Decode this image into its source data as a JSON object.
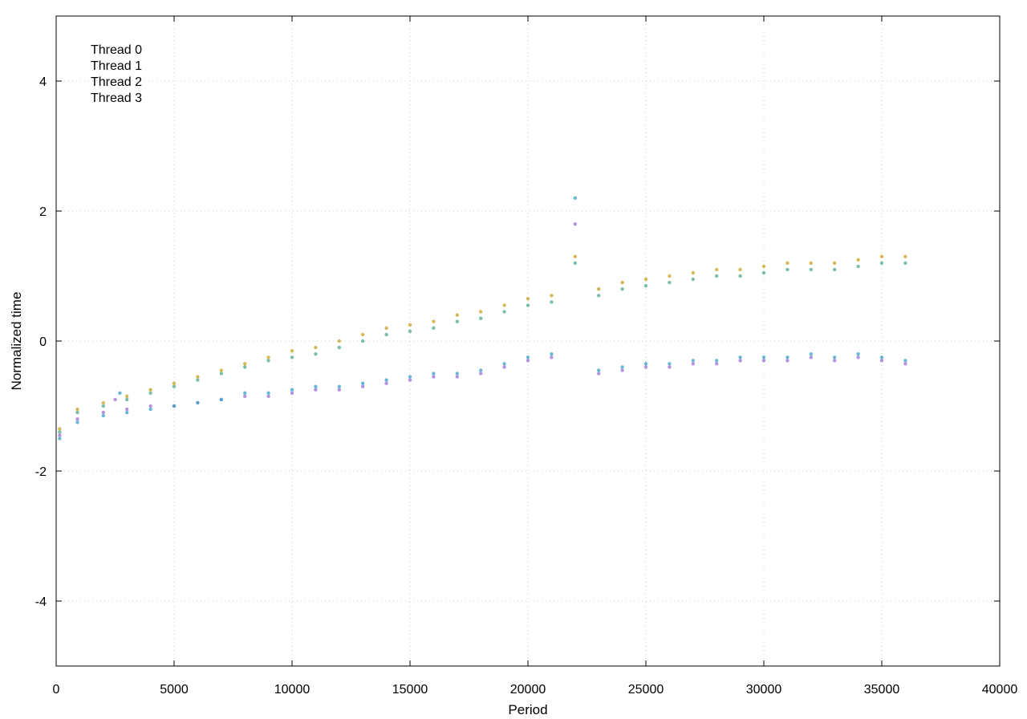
{
  "chart_data": {
    "type": "scatter",
    "xlabel": "Period",
    "ylabel": "Normalized time",
    "xlim": [
      0,
      40000
    ],
    "ylim": [
      -5,
      5
    ],
    "xticks": [
      0,
      5000,
      10000,
      15000,
      20000,
      25000,
      30000,
      35000,
      40000
    ],
    "yticks": [
      -4,
      -2,
      0,
      2,
      4
    ],
    "grid": true,
    "legend_position": "top-left",
    "series": [
      {
        "name": "Thread 0",
        "color": "#9b6fd6",
        "points": [
          [
            150,
            -1.45
          ],
          [
            900,
            -1.2
          ],
          [
            2000,
            -1.1
          ],
          [
            2500,
            -0.9
          ],
          [
            3000,
            -1.05
          ],
          [
            4000,
            -1.0
          ],
          [
            5000,
            -1.0
          ],
          [
            6000,
            -0.95
          ],
          [
            7000,
            -0.9
          ],
          [
            8000,
            -0.85
          ],
          [
            9000,
            -0.85
          ],
          [
            10000,
            -0.8
          ],
          [
            11000,
            -0.75
          ],
          [
            12000,
            -0.75
          ],
          [
            13000,
            -0.7
          ],
          [
            14000,
            -0.65
          ],
          [
            15000,
            -0.6
          ],
          [
            16000,
            -0.55
          ],
          [
            17000,
            -0.55
          ],
          [
            18000,
            -0.5
          ],
          [
            19000,
            -0.4
          ],
          [
            20000,
            -0.3
          ],
          [
            21000,
            -0.25
          ],
          [
            22000,
            1.8
          ],
          [
            23000,
            -0.5
          ],
          [
            24000,
            -0.45
          ],
          [
            25000,
            -0.4
          ],
          [
            26000,
            -0.4
          ],
          [
            27000,
            -0.35
          ],
          [
            28000,
            -0.35
          ],
          [
            29000,
            -0.3
          ],
          [
            30000,
            -0.3
          ],
          [
            31000,
            -0.3
          ],
          [
            32000,
            -0.25
          ],
          [
            33000,
            -0.3
          ],
          [
            34000,
            -0.25
          ],
          [
            35000,
            -0.3
          ],
          [
            36000,
            -0.35
          ]
        ]
      },
      {
        "name": "Thread 1",
        "color": "#3aa0c8",
        "points": [
          [
            150,
            -1.5
          ],
          [
            900,
            -1.25
          ],
          [
            2000,
            -1.15
          ],
          [
            2700,
            -0.8
          ],
          [
            3000,
            -1.1
          ],
          [
            4000,
            -1.05
          ],
          [
            5000,
            -1.0
          ],
          [
            6000,
            -0.95
          ],
          [
            7000,
            -0.9
          ],
          [
            8000,
            -0.8
          ],
          [
            9000,
            -0.8
          ],
          [
            10000,
            -0.75
          ],
          [
            11000,
            -0.7
          ],
          [
            12000,
            -0.7
          ],
          [
            13000,
            -0.65
          ],
          [
            14000,
            -0.6
          ],
          [
            15000,
            -0.55
          ],
          [
            16000,
            -0.5
          ],
          [
            17000,
            -0.5
          ],
          [
            18000,
            -0.45
          ],
          [
            19000,
            -0.35
          ],
          [
            20000,
            -0.25
          ],
          [
            21000,
            -0.2
          ],
          [
            22000,
            2.2
          ],
          [
            23000,
            -0.45
          ],
          [
            24000,
            -0.4
          ],
          [
            25000,
            -0.35
          ],
          [
            26000,
            -0.35
          ],
          [
            27000,
            -0.3
          ],
          [
            28000,
            -0.3
          ],
          [
            29000,
            -0.25
          ],
          [
            30000,
            -0.25
          ],
          [
            31000,
            -0.25
          ],
          [
            32000,
            -0.2
          ],
          [
            33000,
            -0.25
          ],
          [
            34000,
            -0.2
          ],
          [
            35000,
            -0.25
          ],
          [
            36000,
            -0.3
          ]
        ]
      },
      {
        "name": "Thread 2",
        "color": "#4daa8a",
        "points": [
          [
            150,
            -1.4
          ],
          [
            900,
            -1.1
          ],
          [
            2000,
            -1.0
          ],
          [
            3000,
            -0.9
          ],
          [
            4000,
            -0.8
          ],
          [
            5000,
            -0.7
          ],
          [
            6000,
            -0.6
          ],
          [
            7000,
            -0.5
          ],
          [
            8000,
            -0.4
          ],
          [
            9000,
            -0.3
          ],
          [
            10000,
            -0.25
          ],
          [
            11000,
            -0.2
          ],
          [
            12000,
            -0.1
          ],
          [
            13000,
            0.0
          ],
          [
            14000,
            0.1
          ],
          [
            15000,
            0.15
          ],
          [
            16000,
            0.2
          ],
          [
            17000,
            0.3
          ],
          [
            18000,
            0.35
          ],
          [
            19000,
            0.45
          ],
          [
            20000,
            0.55
          ],
          [
            21000,
            0.6
          ],
          [
            22000,
            1.2
          ],
          [
            23000,
            0.7
          ],
          [
            24000,
            0.8
          ],
          [
            25000,
            0.85
          ],
          [
            26000,
            0.9
          ],
          [
            27000,
            0.95
          ],
          [
            28000,
            1.0
          ],
          [
            29000,
            1.0
          ],
          [
            30000,
            1.05
          ],
          [
            31000,
            1.1
          ],
          [
            32000,
            1.1
          ],
          [
            33000,
            1.1
          ],
          [
            34000,
            1.15
          ],
          [
            35000,
            1.2
          ],
          [
            36000,
            1.2
          ]
        ]
      },
      {
        "name": "Thread 3",
        "color": "#c8a020",
        "points": [
          [
            150,
            -1.35
          ],
          [
            900,
            -1.05
          ],
          [
            2000,
            -0.95
          ],
          [
            3000,
            -0.85
          ],
          [
            4000,
            -0.75
          ],
          [
            5000,
            -0.65
          ],
          [
            6000,
            -0.55
          ],
          [
            7000,
            -0.45
          ],
          [
            8000,
            -0.35
          ],
          [
            9000,
            -0.25
          ],
          [
            10000,
            -0.15
          ],
          [
            11000,
            -0.1
          ],
          [
            12000,
            0.0
          ],
          [
            13000,
            0.1
          ],
          [
            14000,
            0.2
          ],
          [
            15000,
            0.25
          ],
          [
            16000,
            0.3
          ],
          [
            17000,
            0.4
          ],
          [
            18000,
            0.45
          ],
          [
            19000,
            0.55
          ],
          [
            20000,
            0.65
          ],
          [
            21000,
            0.7
          ],
          [
            22000,
            1.3
          ],
          [
            23000,
            0.8
          ],
          [
            24000,
            0.9
          ],
          [
            25000,
            0.95
          ],
          [
            26000,
            1.0
          ],
          [
            27000,
            1.05
          ],
          [
            28000,
            1.1
          ],
          [
            29000,
            1.1
          ],
          [
            30000,
            1.15
          ],
          [
            31000,
            1.2
          ],
          [
            32000,
            1.2
          ],
          [
            33000,
            1.2
          ],
          [
            34000,
            1.25
          ],
          [
            35000,
            1.3
          ],
          [
            36000,
            1.3
          ]
        ]
      }
    ]
  }
}
